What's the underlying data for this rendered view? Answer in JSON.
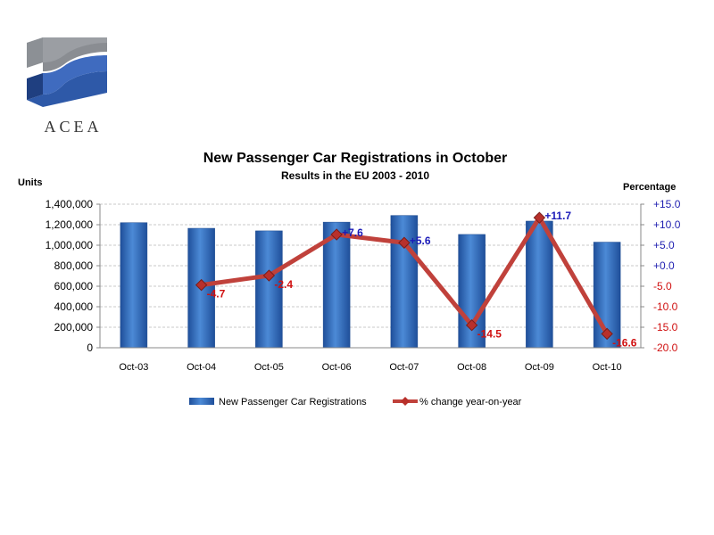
{
  "logo": {
    "text": "ACEA",
    "colors": {
      "blue": "#2e59a8",
      "gray": "#8a8d92"
    }
  },
  "chart_data": {
    "type": "bar+line",
    "title": "New Passenger Car Registrations in October",
    "subtitle": "Results in the EU 2003 - 2010",
    "ylabel_left": "Units",
    "ylabel_right": "Percentage",
    "categories": [
      "Oct-03",
      "Oct-04",
      "Oct-05",
      "Oct-06",
      "Oct-07",
      "Oct-08",
      "Oct-09",
      "Oct-10"
    ],
    "ylim_left": [
      0,
      1400000
    ],
    "yticks_left": [
      "1,400,000",
      "1,200,000",
      "1,000,000",
      "800,000",
      "600,000",
      "400,000",
      "200,000",
      "0"
    ],
    "ylim_right": [
      -20,
      15
    ],
    "yticks_right": [
      "+15.0",
      "+10.0",
      "+5.0",
      "+0.0",
      "-5.0",
      "-10.0",
      "-15.0",
      "-20.0"
    ],
    "grid": true,
    "legend_position": "bottom",
    "series": [
      {
        "name": "New Passenger Car Registrations",
        "type": "bar",
        "axis": "left",
        "color": "#3a78c8",
        "values": [
          1220000,
          1165000,
          1140000,
          1225000,
          1290000,
          1105000,
          1235000,
          1030000
        ]
      },
      {
        "name": "% change year-on-year",
        "type": "line",
        "axis": "right",
        "color": "#c0413b",
        "values": [
          null,
          -4.7,
          -2.4,
          7.6,
          5.6,
          -14.5,
          11.7,
          -16.6
        ],
        "labels": [
          "",
          "-4.7",
          "-2.4",
          "+7.6",
          "+5.6",
          "-14.5",
          "+11.7",
          "-16.6"
        ]
      }
    ]
  }
}
